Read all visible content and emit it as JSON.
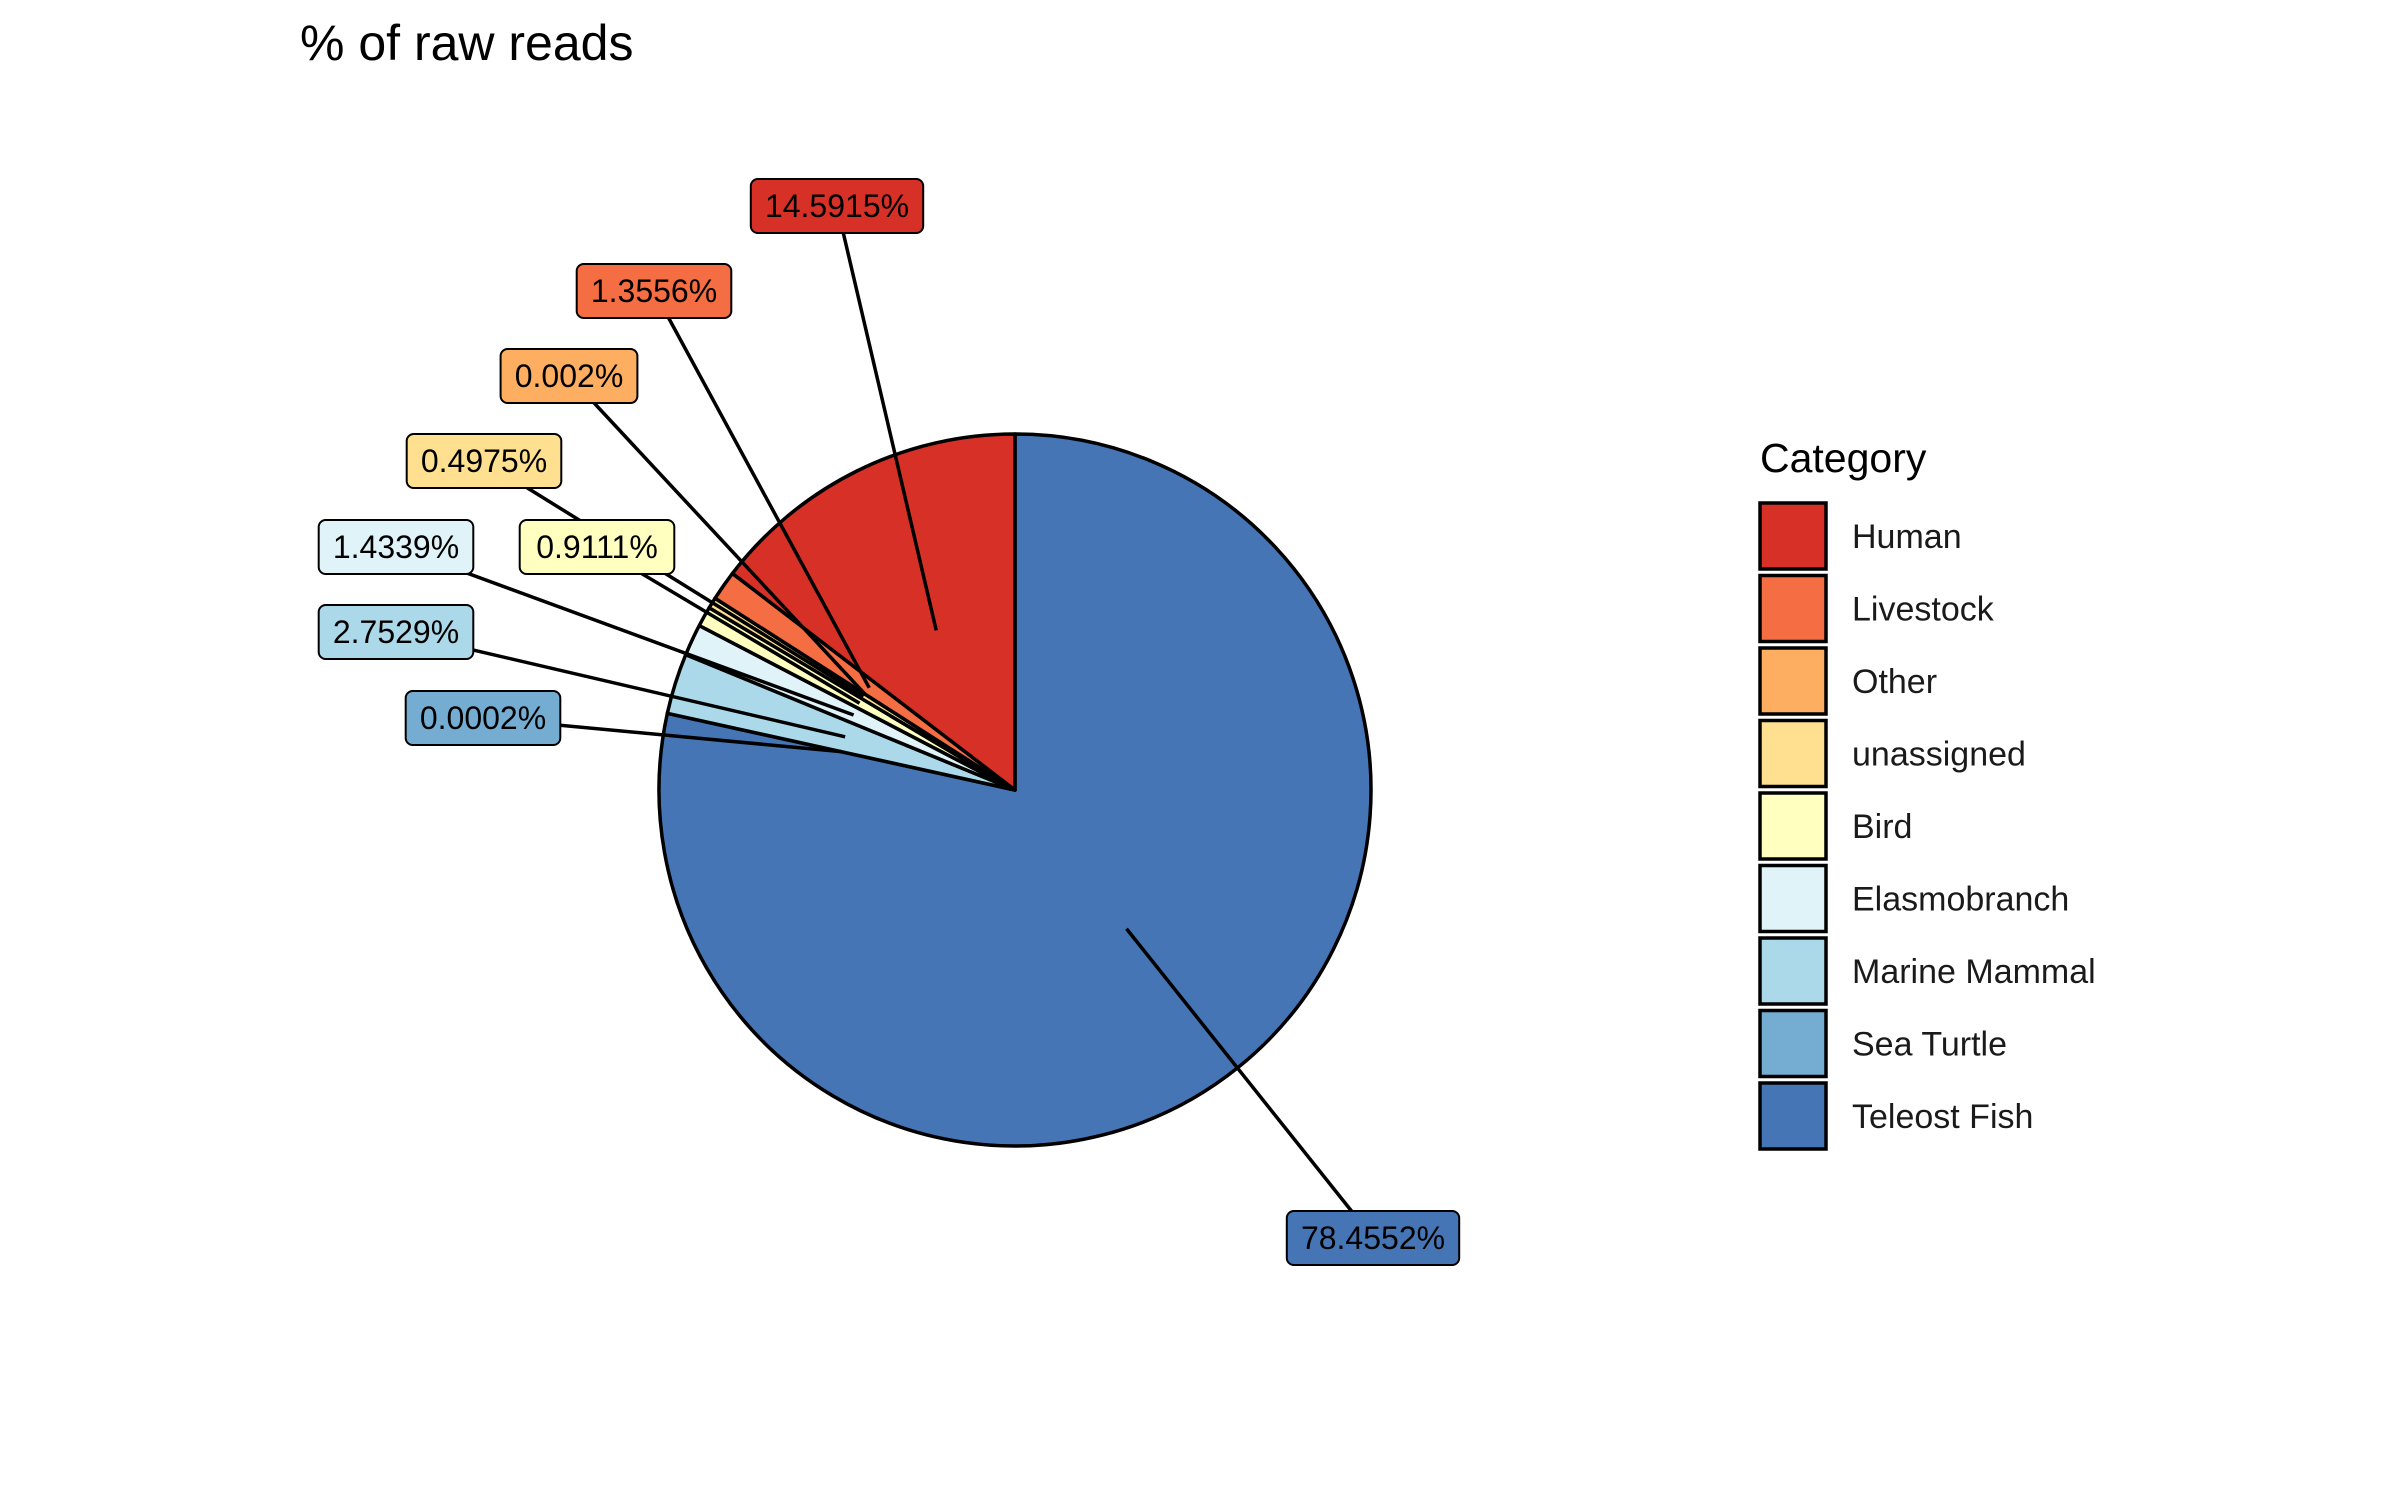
{
  "colors": {
    "background": "#ffffff",
    "outline": "#000000"
  },
  "chart_data": {
    "type": "pie",
    "title": "% of raw reads",
    "legend_title": "Category",
    "legend_position": "right",
    "start_angle": "12 o'clock",
    "direction": "clockwise",
    "labels_style": "boxed callouts with leader lines",
    "slices": [
      {
        "category": "Teleost Fish",
        "value": 78.4552,
        "label": "78.4552%",
        "color": "#4575b4"
      },
      {
        "category": "Sea Turtle",
        "value": 0.0002,
        "label": "0.0002%",
        "color": "#74add1"
      },
      {
        "category": "Marine Mammal",
        "value": 2.7529,
        "label": "2.7529%",
        "color": "#abd9e9"
      },
      {
        "category": "Elasmobranch",
        "value": 1.4339,
        "label": "1.4339%",
        "color": "#e0f3f8"
      },
      {
        "category": "Bird",
        "value": 0.9111,
        "label": "0.9111%",
        "color": "#ffffbf"
      },
      {
        "category": "unassigned",
        "value": 0.4975,
        "label": "0.4975%",
        "color": "#fee090"
      },
      {
        "category": "Other",
        "value": 0.002,
        "label": "0.002%",
        "color": "#fdae61"
      },
      {
        "category": "Livestock",
        "value": 1.3556,
        "label": "1.3556%",
        "color": "#f46d43"
      },
      {
        "category": "Human",
        "value": 14.5915,
        "label": "14.5915%",
        "color": "#d73027"
      }
    ],
    "legend_order": [
      "Human",
      "Livestock",
      "Other",
      "unassigned",
      "Bird",
      "Elasmobranch",
      "Marine Mammal",
      "Sea Turtle",
      "Teleost Fish"
    ]
  }
}
